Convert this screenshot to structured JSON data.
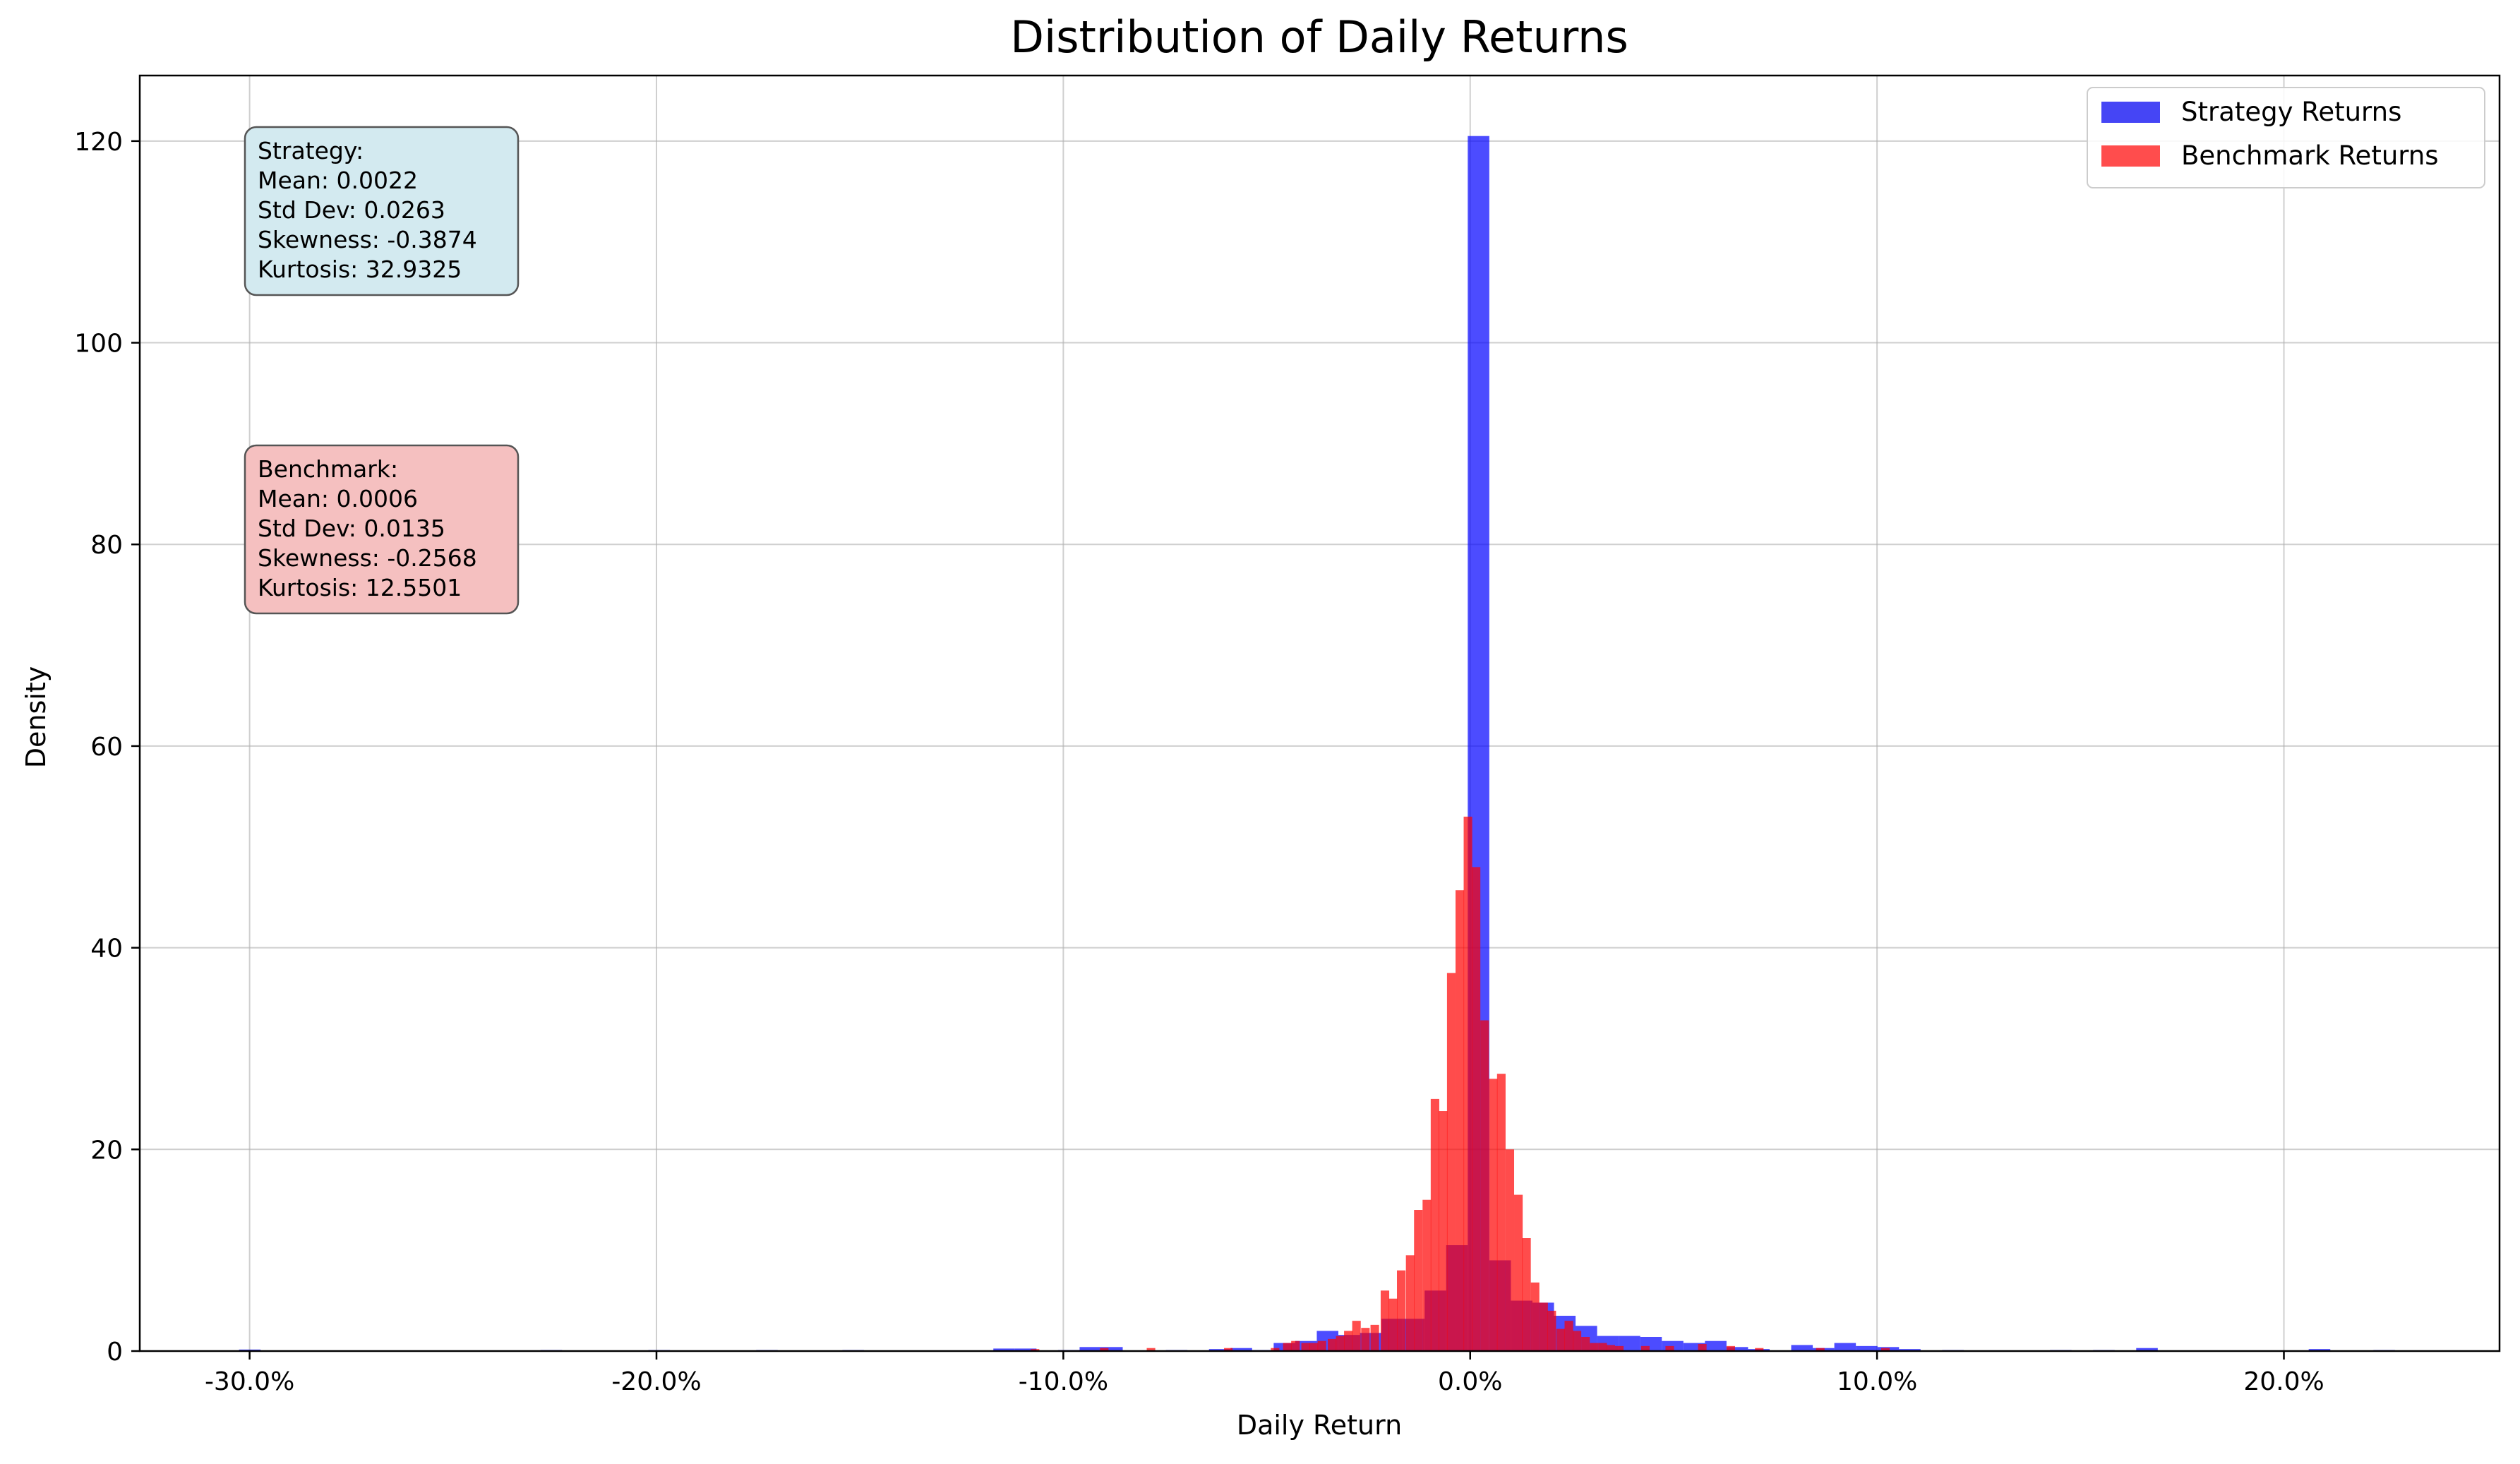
{
  "chart_data": {
    "type": "bar",
    "title": "Distribution of Daily Returns",
    "xlabel": "Daily Return",
    "ylabel": "Density",
    "xlim": [
      -0.327,
      0.253
    ],
    "ylim": [
      0,
      126.5
    ],
    "x_ticks": [
      {
        "value": -0.3,
        "label": "-30.0%"
      },
      {
        "value": -0.2,
        "label": "-20.0%"
      },
      {
        "value": -0.1,
        "label": "-10.0%"
      },
      {
        "value": 0.0,
        "label": "0.0%"
      },
      {
        "value": 0.1,
        "label": "10.0%"
      },
      {
        "value": 0.2,
        "label": "20.0%"
      }
    ],
    "y_ticks": [
      {
        "value": 0,
        "label": "0"
      },
      {
        "value": 20,
        "label": "20"
      },
      {
        "value": 40,
        "label": "40"
      },
      {
        "value": 60,
        "label": "60"
      },
      {
        "value": 80,
        "label": "80"
      },
      {
        "value": 100,
        "label": "100"
      },
      {
        "value": 120,
        "label": "120"
      }
    ],
    "grid": true,
    "legend": {
      "placement": "top-right",
      "entries": [
        {
          "label": "Strategy Returns",
          "color": "#4545f5"
        },
        {
          "label": "Benchmark Returns",
          "color": "#ff4d4d"
        }
      ]
    },
    "annotations": [
      {
        "id": "strategy",
        "placement": "upper-left",
        "bg_color": "#d3eaf0",
        "lines": [
          "Strategy:",
          "Mean: 0.0022",
          "Std Dev: 0.0263",
          "Skewness: -0.3874",
          "Kurtosis: 32.9325"
        ]
      },
      {
        "id": "benchmark",
        "placement": "left",
        "bg_color": "#f5c0c0",
        "lines": [
          "Benchmark:",
          "Mean: 0.0006",
          "Std Dev: 0.0135",
          "Skewness: -0.2568",
          "Kurtosis: 12.5501"
        ]
      }
    ],
    "series": [
      {
        "name": "Strategy Returns",
        "color": "#0000ff",
        "opacity": 0.7,
        "bin_width": 0.0053,
        "bins": [
          [
            -0.3026,
            0.15
          ],
          [
            -0.2285,
            0.1
          ],
          [
            -0.202,
            0.1
          ],
          [
            -0.1755,
            0.1
          ],
          [
            -0.1543,
            0.1
          ],
          [
            -0.1172,
            0.25
          ],
          [
            -0.1119,
            0.25
          ],
          [
            -0.096,
            0.1
          ],
          [
            -0.096,
            0.1
          ],
          [
            -0.096,
            0.1
          ],
          [
            -0.096,
            0.1
          ],
          [
            -0.096,
            0.1
          ],
          [
            -0.096,
            0.1
          ],
          [
            -0.096,
            0.1
          ],
          [
            -0.096,
            0.1
          ],
          [
            -0.096,
            0.1
          ],
          [
            -0.096,
            0.1
          ],
          [
            -0.096,
            0.1
          ],
          [
            -0.096,
            0.1
          ],
          [
            -0.096,
            0.1
          ],
          [
            -0.096,
            0.1
          ],
          [
            -0.096,
            0.1
          ],
          [
            -0.096,
            0.1
          ],
          [
            -0.096,
            0.1
          ],
          [
            -0.096,
            0.1
          ],
          [
            -0.096,
            0.1
          ],
          [
            -0.096,
            0.1
          ],
          [
            -0.096,
            0.1
          ],
          [
            -0.096,
            0.1
          ],
          [
            -0.096,
            0.1
          ],
          [
            -0.096,
            0.1
          ],
          [
            -0.096,
            0.1
          ],
          [
            -0.096,
            0.1
          ],
          [
            -0.096,
            0.1
          ],
          [
            -0.096,
            0.1
          ],
          [
            -0.096,
            0.1
          ],
          [
            -0.096,
            0.1
          ],
          [
            -0.096,
            0.1
          ],
          [
            -0.096,
            0.1
          ],
          [
            -0.096,
            0.1
          ],
          [
            -0.096,
            0.1
          ],
          [
            -0.096,
            0.1
          ],
          [
            -0.096,
            0.1
          ],
          [
            -0.096,
            0.1
          ],
          [
            -0.096,
            0.1
          ],
          [
            -0.096,
            0.1
          ],
          [
            -0.096,
            0.1
          ],
          [
            -0.096,
            0.1
          ],
          [
            -0.096,
            0.1
          ],
          [
            -0.096,
            0.1
          ],
          [
            -0.096,
            0.1
          ],
          [
            -0.096,
            0.1
          ],
          [
            -0.096,
            0.1
          ],
          [
            -0.096,
            0.1
          ],
          [
            -0.096,
            0.1
          ],
          [
            -0.096,
            0.1
          ],
          [
            -0.096,
            0.1
          ],
          [
            -0.096,
            0.1
          ],
          [
            -0.096,
            0.1
          ],
          [
            -0.096,
            0.1
          ],
          [
            -0.096,
            0.1
          ],
          [
            -0.096,
            0.1
          ],
          [
            -0.096,
            0.1
          ],
          [
            -0.096,
            0.1
          ],
          [
            -0.096,
            0.1
          ],
          [
            -0.096,
            0.1
          ],
          [
            -0.096,
            0.1
          ],
          [
            -0.096,
            0.1
          ],
          [
            -0.096,
            0.1
          ],
          [
            -0.096,
            0.1
          ],
          [
            -0.096,
            0.1
          ],
          [
            -0.096,
            0.1
          ],
          [
            -0.096,
            0.1
          ],
          [
            -0.096,
            0.1
          ],
          [
            -0.096,
            0.1
          ],
          [
            -0.096,
            0.1
          ],
          [
            -0.096,
            0.1
          ],
          [
            -0.096,
            0.1
          ],
          [
            -0.096,
            0.1
          ],
          [
            -0.096,
            0.1
          ],
          [
            -0.096,
            0.1
          ],
          [
            -0.096,
            0.1
          ],
          [
            -0.096,
            0.1
          ],
          [
            -0.096,
            0.1
          ],
          [
            -0.096,
            0.1
          ],
          [
            -0.096,
            0.1
          ],
          [
            -0.096,
            0.1
          ],
          [
            -0.096,
            0.1
          ],
          [
            -0.096,
            0.1
          ],
          [
            -0.096,
            0.1
          ],
          [
            -0.096,
            0.1
          ],
          [
            -0.096,
            0.1
          ],
          [
            -0.096,
            0.1
          ],
          [
            -0.096,
            0.1
          ],
          [
            -0.096,
            0.1
          ],
          [
            -0.096,
            0.1
          ],
          [
            -0.096,
            0.1
          ],
          [
            -0.096,
            0.1
          ],
          [
            -0.096,
            0.1
          ],
          [
            -0.096,
            0.1
          ],
          [
            -0.096,
            0.1
          ],
          [
            -0.096,
            0.1
          ],
          [
            -0.096,
            0.1
          ],
          [
            -0.096,
            0.1
          ],
          [
            -0.096,
            0.1
          ],
          [
            -0.096,
            0.1
          ],
          [
            -0.096,
            0.1
          ],
          [
            -0.096,
            0.1
          ],
          [
            -0.096,
            0.1
          ],
          [
            -0.096,
            0.1
          ],
          [
            -0.096,
            0.1
          ],
          [
            -0.096,
            0.1
          ],
          [
            -0.096,
            0.1
          ],
          [
            -0.096,
            0.1
          ],
          [
            -0.096,
            0.1
          ],
          [
            -0.096,
            0.1
          ],
          [
            -0.096,
            0.1
          ],
          [
            -0.096,
            0.1
          ],
          [
            -0.096,
            0.1
          ],
          [
            -0.096,
            0.1
          ],
          [
            -0.096,
            0.1
          ],
          [
            -0.096,
            0.1
          ],
          [
            -0.096,
            0.1
          ],
          [
            -0.096,
            0.1
          ],
          [
            -0.096,
            0.1
          ],
          [
            -0.096,
            0.1
          ],
          [
            -0.096,
            0.1
          ],
          [
            -0.096,
            0.1
          ],
          [
            -0.096,
            0.1
          ],
          [
            -0.096,
            0.1
          ]
        ]
      },
      {
        "name": "Benchmark Returns",
        "color": "#ff0000",
        "opacity": 0.7,
        "bin_width": 0.0021,
        "bins": []
      }
    ]
  }
}
